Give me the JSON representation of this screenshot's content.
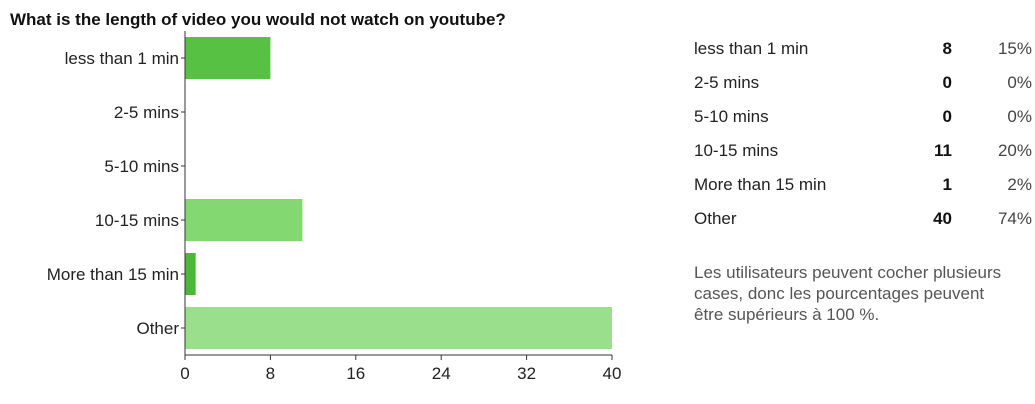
{
  "question": "What is the length of video you would not watch on youtube?",
  "chart_data": {
    "type": "bar",
    "orientation": "horizontal",
    "title": "What is the length of video you would not watch on youtube?",
    "categories": [
      "less than 1 min",
      "2-5 mins",
      "5-10 mins",
      "10-15 mins",
      "More than 15 min",
      "Other"
    ],
    "values": [
      8,
      0,
      0,
      11,
      1,
      40
    ],
    "xlim": [
      0,
      40
    ],
    "xticks": [
      "0",
      "8",
      "16",
      "24",
      "32",
      "40"
    ],
    "colors": [
      "#56c142",
      "#76d164",
      "#65c853",
      "#84d872",
      "#4cb738",
      "#9adf8c"
    ],
    "grid": false,
    "legend": "none"
  },
  "summary": {
    "rows": [
      {
        "label": "less than 1 min",
        "count": "8",
        "percent": "15%"
      },
      {
        "label": "2-5 mins",
        "count": "0",
        "percent": "0%"
      },
      {
        "label": "5-10 mins",
        "count": "0",
        "percent": "0%"
      },
      {
        "label": "10-15 mins",
        "count": "11",
        "percent": "20%"
      },
      {
        "label": "More than 15 min",
        "count": "1",
        "percent": "2%"
      },
      {
        "label": "Other",
        "count": "40",
        "percent": "74%"
      }
    ],
    "note": "Les utilisateurs peuvent cocher plusieurs cases, donc les pourcentages peuvent être supérieurs à 100 %."
  }
}
